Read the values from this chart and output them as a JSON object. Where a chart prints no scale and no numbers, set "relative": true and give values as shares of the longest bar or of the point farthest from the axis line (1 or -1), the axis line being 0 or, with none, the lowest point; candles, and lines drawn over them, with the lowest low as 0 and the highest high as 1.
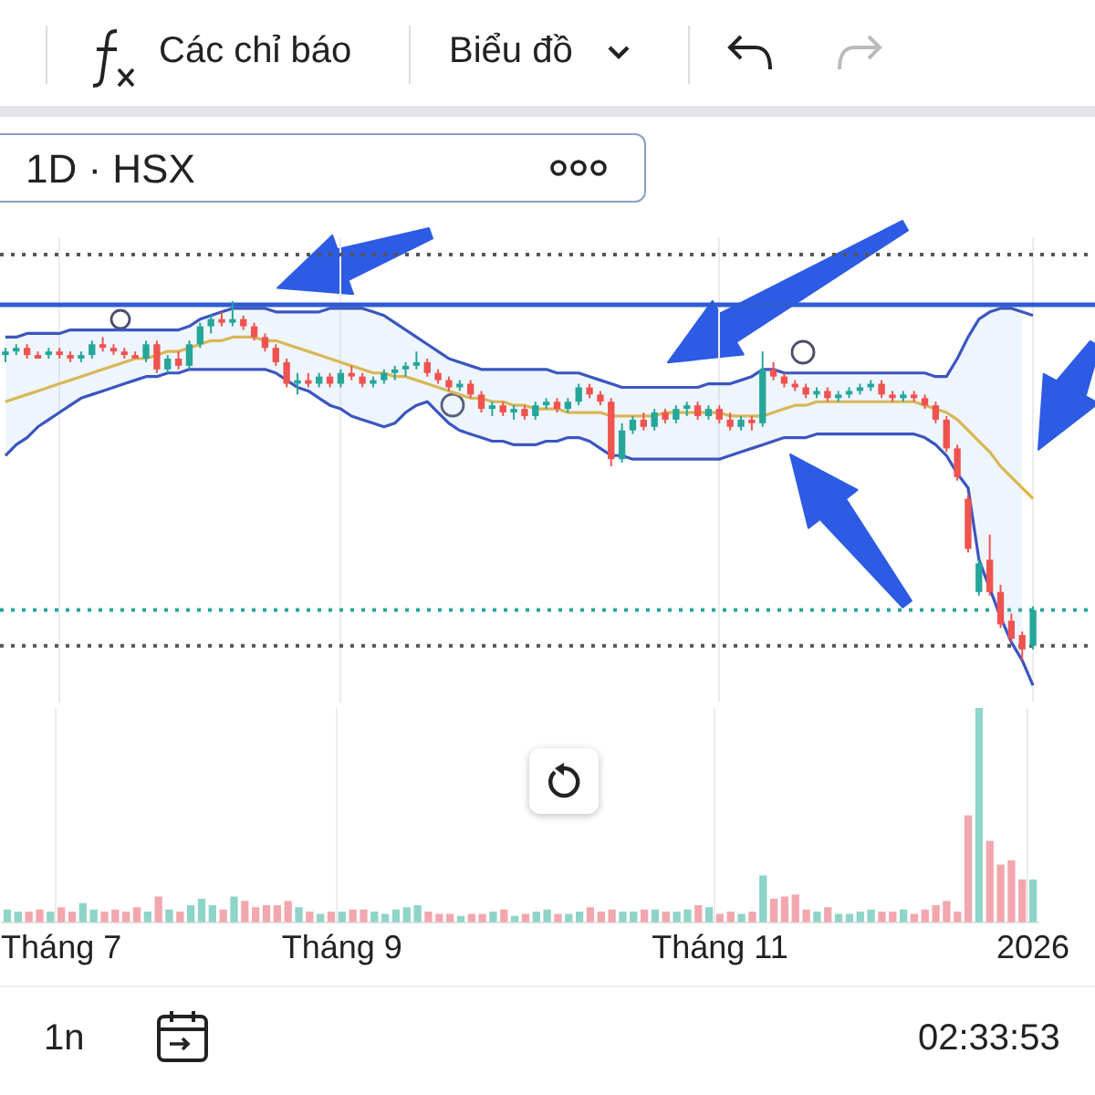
{
  "chart_data": [
    {
      "type": "candlestick",
      "title": "1D · HSX",
      "relative": true,
      "tick_labels": false,
      "grid": "x",
      "marker": "none",
      "annotations": [
        "Các chỉ báo",
        "Biểu đồ",
        "1n",
        "02:33:53"
      ],
      "categories": [
        null,
        null,
        null,
        null,
        null,
        null,
        null,
        null,
        null,
        null,
        null,
        null,
        null,
        null,
        null,
        null,
        null,
        null,
        null,
        null,
        null,
        null,
        null,
        null,
        null,
        null,
        null,
        null,
        null,
        null,
        null,
        null,
        null,
        null,
        null,
        null,
        null,
        null,
        null,
        null,
        null,
        null,
        null,
        null,
        null,
        null,
        null,
        null,
        null,
        null,
        null,
        null,
        null,
        null,
        null,
        null,
        null,
        null,
        null,
        null,
        null,
        null,
        null,
        null,
        null,
        null,
        null,
        null,
        null,
        null,
        null,
        null,
        null,
        null,
        null,
        null,
        null,
        null,
        null,
        null,
        null,
        null,
        null,
        null,
        null,
        null,
        null,
        null,
        null,
        null,
        null,
        null,
        null,
        null,
        null,
        null
      ],
      "ohlc": [
        [
          0.85,
          0.87,
          0.83,
          0.86
        ],
        [
          0.86,
          0.88,
          0.85,
          0.87
        ],
        [
          0.87,
          0.88,
          0.84,
          0.85
        ],
        [
          0.85,
          0.86,
          0.84,
          0.84
        ],
        [
          0.85,
          0.87,
          0.84,
          0.86
        ],
        [
          0.86,
          0.87,
          0.84,
          0.85
        ],
        [
          0.85,
          0.86,
          0.83,
          0.84
        ],
        [
          0.84,
          0.86,
          0.83,
          0.85
        ],
        [
          0.85,
          0.89,
          0.84,
          0.88
        ],
        [
          0.88,
          0.9,
          0.86,
          0.87
        ],
        [
          0.87,
          0.88,
          0.85,
          0.86
        ],
        [
          0.86,
          0.87,
          0.84,
          0.85
        ],
        [
          0.85,
          0.86,
          0.84,
          0.84
        ],
        [
          0.84,
          0.89,
          0.83,
          0.88
        ],
        [
          0.88,
          0.89,
          0.8,
          0.81
        ],
        [
          0.81,
          0.85,
          0.8,
          0.84
        ],
        [
          0.84,
          0.86,
          0.81,
          0.82
        ],
        [
          0.82,
          0.89,
          0.81,
          0.88
        ],
        [
          0.88,
          0.94,
          0.87,
          0.93
        ],
        [
          0.93,
          0.96,
          0.91,
          0.95
        ],
        [
          0.95,
          0.97,
          0.93,
          0.94
        ],
        [
          0.94,
          1.0,
          0.93,
          0.95
        ],
        [
          0.95,
          0.96,
          0.92,
          0.93
        ],
        [
          0.93,
          0.94,
          0.89,
          0.9
        ],
        [
          0.9,
          0.91,
          0.86,
          0.87
        ],
        [
          0.87,
          0.88,
          0.82,
          0.83
        ],
        [
          0.83,
          0.84,
          0.76,
          0.77
        ],
        [
          0.77,
          0.8,
          0.74,
          0.78
        ],
        [
          0.78,
          0.8,
          0.76,
          0.77
        ],
        [
          0.77,
          0.8,
          0.76,
          0.79
        ],
        [
          0.79,
          0.8,
          0.76,
          0.77
        ],
        [
          0.77,
          0.81,
          0.76,
          0.8
        ],
        [
          0.8,
          0.82,
          0.78,
          0.79
        ],
        [
          0.79,
          0.8,
          0.76,
          0.77
        ],
        [
          0.77,
          0.79,
          0.76,
          0.78
        ],
        [
          0.78,
          0.81,
          0.77,
          0.8
        ],
        [
          0.8,
          0.82,
          0.78,
          0.81
        ],
        [
          0.81,
          0.83,
          0.79,
          0.82
        ],
        [
          0.82,
          0.86,
          0.81,
          0.83
        ],
        [
          0.83,
          0.84,
          0.79,
          0.8
        ],
        [
          0.8,
          0.81,
          0.77,
          0.78
        ],
        [
          0.78,
          0.79,
          0.75,
          0.76
        ],
        [
          0.76,
          0.78,
          0.75,
          0.77
        ],
        [
          0.77,
          0.78,
          0.73,
          0.74
        ],
        [
          0.74,
          0.75,
          0.69,
          0.7
        ],
        [
          0.7,
          0.72,
          0.68,
          0.71
        ],
        [
          0.71,
          0.72,
          0.68,
          0.69
        ],
        [
          0.69,
          0.71,
          0.67,
          0.7
        ],
        [
          0.7,
          0.71,
          0.67,
          0.68
        ],
        [
          0.68,
          0.72,
          0.67,
          0.71
        ],
        [
          0.71,
          0.73,
          0.7,
          0.72
        ],
        [
          0.72,
          0.73,
          0.69,
          0.7
        ],
        [
          0.7,
          0.73,
          0.69,
          0.72
        ],
        [
          0.72,
          0.77,
          0.71,
          0.76
        ],
        [
          0.76,
          0.77,
          0.73,
          0.74
        ],
        [
          0.74,
          0.75,
          0.71,
          0.72
        ],
        [
          0.72,
          0.73,
          0.54,
          0.56
        ],
        [
          0.56,
          0.66,
          0.55,
          0.64
        ],
        [
          0.64,
          0.68,
          0.63,
          0.67
        ],
        [
          0.67,
          0.69,
          0.64,
          0.65
        ],
        [
          0.65,
          0.7,
          0.64,
          0.69
        ],
        [
          0.69,
          0.7,
          0.66,
          0.67
        ],
        [
          0.67,
          0.71,
          0.66,
          0.7
        ],
        [
          0.7,
          0.72,
          0.68,
          0.71
        ],
        [
          0.71,
          0.72,
          0.67,
          0.68
        ],
        [
          0.68,
          0.71,
          0.67,
          0.7
        ],
        [
          0.7,
          0.71,
          0.66,
          0.67
        ],
        [
          0.67,
          0.69,
          0.64,
          0.65
        ],
        [
          0.65,
          0.68,
          0.64,
          0.67
        ],
        [
          0.67,
          0.68,
          0.64,
          0.66
        ],
        [
          0.66,
          0.86,
          0.65,
          0.81
        ],
        [
          0.81,
          0.83,
          0.78,
          0.79
        ],
        [
          0.79,
          0.8,
          0.76,
          0.77
        ],
        [
          0.77,
          0.78,
          0.75,
          0.76
        ],
        [
          0.76,
          0.77,
          0.73,
          0.74
        ],
        [
          0.74,
          0.76,
          0.73,
          0.75
        ],
        [
          0.75,
          0.76,
          0.72,
          0.73
        ],
        [
          0.73,
          0.75,
          0.72,
          0.74
        ],
        [
          0.74,
          0.76,
          0.73,
          0.75
        ],
        [
          0.75,
          0.77,
          0.74,
          0.76
        ],
        [
          0.76,
          0.78,
          0.75,
          0.77
        ],
        [
          0.77,
          0.78,
          0.73,
          0.74
        ],
        [
          0.74,
          0.75,
          0.72,
          0.73
        ],
        [
          0.73,
          0.75,
          0.72,
          0.74
        ],
        [
          0.74,
          0.75,
          0.72,
          0.73
        ],
        [
          0.73,
          0.74,
          0.7,
          0.71
        ],
        [
          0.71,
          0.72,
          0.66,
          0.67
        ],
        [
          0.67,
          0.68,
          0.58,
          0.59
        ],
        [
          0.59,
          0.6,
          0.5,
          0.51
        ],
        [
          0.45,
          0.46,
          0.3,
          0.31
        ],
        [
          0.19,
          0.28,
          0.18,
          0.27
        ],
        [
          0.28,
          0.35,
          0.18,
          0.19
        ],
        [
          0.19,
          0.21,
          0.09,
          0.1
        ],
        [
          0.11,
          0.13,
          0.05,
          0.06
        ],
        [
          0.07,
          0.08,
          0.0,
          0.03
        ],
        [
          0.04,
          0.15,
          0.03,
          0.14
        ]
      ],
      "series": [
        {
          "type": "line",
          "color": "#3b55c0",
          "values": [
            0.9,
            0.9,
            0.91,
            0.91,
            0.91,
            0.91,
            0.92,
            0.92,
            0.92,
            0.92,
            0.92,
            0.92,
            0.92,
            0.92,
            0.92,
            0.92,
            0.92,
            0.93,
            0.95,
            0.96,
            0.97,
            0.98,
            0.98,
            0.98,
            0.98,
            0.97,
            0.97,
            0.97,
            0.97,
            0.97,
            0.98,
            0.98,
            0.98,
            0.98,
            0.97,
            0.96,
            0.94,
            0.92,
            0.9,
            0.88,
            0.86,
            0.84,
            0.83,
            0.82,
            0.81,
            0.81,
            0.81,
            0.81,
            0.81,
            0.81,
            0.81,
            0.8,
            0.8,
            0.8,
            0.79,
            0.78,
            0.77,
            0.76,
            0.76,
            0.76,
            0.76,
            0.76,
            0.76,
            0.76,
            0.76,
            0.77,
            0.77,
            0.77,
            0.78,
            0.79,
            0.81,
            0.81,
            0.8,
            0.8,
            0.8,
            0.8,
            0.8,
            0.8,
            0.8,
            0.8,
            0.8,
            0.8,
            0.8,
            0.8,
            0.8,
            0.8,
            0.79,
            0.79,
            0.84,
            0.9,
            0.95,
            0.97,
            0.98,
            0.98,
            0.97,
            0.96
          ]
        },
        {
          "type": "line",
          "color": "#3b55c0",
          "values": [
            0.57,
            0.6,
            0.62,
            0.65,
            0.67,
            0.69,
            0.71,
            0.73,
            0.74,
            0.75,
            0.76,
            0.77,
            0.78,
            0.79,
            0.79,
            0.8,
            0.8,
            0.81,
            0.81,
            0.81,
            0.81,
            0.81,
            0.81,
            0.81,
            0.81,
            0.8,
            0.78,
            0.76,
            0.75,
            0.73,
            0.71,
            0.7,
            0.68,
            0.67,
            0.66,
            0.65,
            0.66,
            0.69,
            0.71,
            0.72,
            0.69,
            0.66,
            0.64,
            0.63,
            0.62,
            0.61,
            0.61,
            0.6,
            0.6,
            0.6,
            0.61,
            0.61,
            0.62,
            0.62,
            0.61,
            0.59,
            0.57,
            0.57,
            0.56,
            0.56,
            0.56,
            0.56,
            0.56,
            0.56,
            0.56,
            0.56,
            0.56,
            0.57,
            0.58,
            0.59,
            0.6,
            0.61,
            0.62,
            0.62,
            0.62,
            0.63,
            0.63,
            0.63,
            0.63,
            0.63,
            0.63,
            0.63,
            0.63,
            0.63,
            0.63,
            0.62,
            0.6,
            0.57,
            0.52,
            0.48,
            0.28,
            0.2,
            0.12,
            0.05,
            0.0,
            -0.07
          ]
        },
        {
          "type": "line",
          "color": "#e6b43c",
          "values": [
            0.72,
            0.73,
            0.74,
            0.75,
            0.76,
            0.77,
            0.78,
            0.79,
            0.8,
            0.81,
            0.82,
            0.83,
            0.84,
            0.84,
            0.85,
            0.86,
            0.86,
            0.87,
            0.88,
            0.89,
            0.89,
            0.9,
            0.9,
            0.9,
            0.89,
            0.89,
            0.88,
            0.87,
            0.86,
            0.85,
            0.84,
            0.83,
            0.82,
            0.81,
            0.8,
            0.8,
            0.79,
            0.79,
            0.78,
            0.77,
            0.76,
            0.75,
            0.74,
            0.73,
            0.73,
            0.72,
            0.72,
            0.71,
            0.71,
            0.7,
            0.7,
            0.7,
            0.69,
            0.69,
            0.69,
            0.69,
            0.68,
            0.68,
            0.68,
            0.68,
            0.68,
            0.69,
            0.69,
            0.69,
            0.69,
            0.69,
            0.69,
            0.68,
            0.68,
            0.68,
            0.68,
            0.69,
            0.7,
            0.71,
            0.71,
            0.72,
            0.72,
            0.72,
            0.72,
            0.72,
            0.72,
            0.72,
            0.72,
            0.72,
            0.72,
            0.71,
            0.7,
            0.69,
            0.67,
            0.64,
            0.61,
            0.58,
            0.54,
            0.51,
            0.48,
            0.45
          ],
          "upper": [
            0.9,
            0.9,
            0.91,
            0.91,
            0.91,
            0.91,
            0.92,
            0.92,
            0.92,
            0.92,
            0.92,
            0.92,
            0.92,
            0.92,
            0.92,
            0.92,
            0.92,
            0.93,
            0.95,
            0.96,
            0.97,
            0.98,
            0.98,
            0.98,
            0.98,
            0.97,
            0.97,
            0.97,
            0.97,
            0.97,
            0.98,
            0.98,
            0.98,
            0.98,
            0.97,
            0.96,
            0.94,
            0.92,
            0.9,
            0.88,
            0.86,
            0.84,
            0.83,
            0.82,
            0.81,
            0.81,
            0.81,
            0.81,
            0.81,
            0.81,
            0.81,
            0.8,
            0.8,
            0.8,
            0.79,
            0.78,
            0.77,
            0.76,
            0.76,
            0.76,
            0.76,
            0.76,
            0.76,
            0.76,
            0.76,
            0.77,
            0.77,
            0.77,
            0.78,
            0.79,
            0.81,
            0.81,
            0.8,
            0.8,
            0.8,
            0.8,
            0.8,
            0.8,
            0.8,
            0.8,
            0.8,
            0.8,
            0.8,
            0.8,
            0.8,
            0.8,
            0.79,
            0.79,
            0.84,
            0.9,
            0.95,
            0.97,
            0.98,
            0.98,
            0.97,
            null
          ],
          "lower": [
            0.57,
            0.6,
            0.62,
            0.65,
            0.67,
            0.69,
            0.71,
            0.73,
            0.74,
            0.75,
            0.76,
            0.77,
            0.78,
            0.79,
            0.79,
            0.8,
            0.8,
            0.81,
            0.81,
            0.81,
            0.81,
            0.81,
            0.81,
            0.81,
            0.81,
            0.8,
            0.78,
            0.76,
            0.75,
            0.73,
            0.71,
            0.7,
            0.68,
            0.67,
            0.66,
            0.65,
            0.66,
            0.69,
            0.71,
            0.72,
            0.69,
            0.66,
            0.64,
            0.63,
            0.62,
            0.61,
            0.61,
            0.6,
            0.6,
            0.6,
            0.61,
            0.61,
            0.62,
            0.62,
            0.61,
            0.59,
            0.57,
            0.57,
            0.56,
            0.56,
            0.56,
            0.56,
            0.56,
            0.56,
            0.56,
            0.56,
            0.56,
            0.57,
            0.58,
            0.59,
            0.6,
            0.61,
            0.62,
            0.62,
            0.62,
            0.63,
            0.63,
            0.63,
            0.63,
            0.63,
            0.63,
            0.63,
            0.63,
            0.63,
            0.63,
            0.62,
            0.6,
            0.57,
            0.52,
            0.48,
            0.28,
            0.2,
            0.12,
            0.05,
            0.0,
            null
          ]
        }
      ],
      "ref_lines": [
        {
          "axis": "y",
          "value": 1.13,
          "color": "#555555",
          "line_style": "dotted"
        },
        {
          "axis": "y",
          "value": 0.14,
          "color": "#26a69a",
          "line_style": "dotted"
        },
        {
          "axis": "y",
          "value": 0.04,
          "color": "#555555",
          "line_style": "dotted"
        },
        {
          "axis": "y",
          "value": 0.99,
          "color": "#2f5bd3",
          "line_style": "solid"
        }
      ]
    },
    {
      "type": "bar",
      "relative": true,
      "tick_labels": "x",
      "grid": "x",
      "categories": [
        null,
        null,
        null,
        null,
        null,
        "Tháng 7",
        null,
        null,
        null,
        null,
        null,
        null,
        null,
        null,
        null,
        null,
        null,
        null,
        null,
        null,
        null,
        null,
        null,
        null,
        null,
        null,
        null,
        null,
        null,
        null,
        null,
        "Tháng 9",
        null,
        null,
        null,
        null,
        null,
        null,
        null,
        null,
        null,
        null,
        null,
        null,
        null,
        null,
        null,
        null,
        null,
        null,
        null,
        null,
        null,
        null,
        null,
        null,
        null,
        null,
        null,
        null,
        null,
        null,
        null,
        null,
        null,
        null,
        "Tháng 11",
        null,
        null,
        null,
        null,
        null,
        null,
        null,
        null,
        null,
        null,
        null,
        null,
        null,
        null,
        null,
        null,
        null,
        null,
        null,
        null,
        null,
        null,
        null,
        null,
        null,
        null,
        null,
        null,
        "2026"
      ],
      "values": [
        0.06,
        0.05,
        0.05,
        0.06,
        0.05,
        0.07,
        0.05,
        0.09,
        0.06,
        0.05,
        0.06,
        0.05,
        0.07,
        0.05,
        0.12,
        0.06,
        0.05,
        0.08,
        0.11,
        0.08,
        0.06,
        0.12,
        0.1,
        0.07,
        0.08,
        0.08,
        0.1,
        0.07,
        0.05,
        0.04,
        0.05,
        0.05,
        0.06,
        0.06,
        0.05,
        0.04,
        0.06,
        0.07,
        0.08,
        0.05,
        0.04,
        0.04,
        0.03,
        0.04,
        0.04,
        0.05,
        0.06,
        0.03,
        0.04,
        0.05,
        0.06,
        0.04,
        0.04,
        0.05,
        0.07,
        0.05,
        0.06,
        0.05,
        0.05,
        0.06,
        0.06,
        0.05,
        0.05,
        0.06,
        0.08,
        0.07,
        0.04,
        0.05,
        0.04,
        0.05,
        0.22,
        0.11,
        0.12,
        0.13,
        0.06,
        0.05,
        0.07,
        0.04,
        0.04,
        0.05,
        0.06,
        0.05,
        0.05,
        0.06,
        0.04,
        0.06,
        0.08,
        0.1,
        0.05,
        0.5,
        1.0,
        0.38,
        0.27,
        0.29,
        0.2,
        0.2
      ],
      "colors": [
        "#8fd4c8",
        "#8fd4c8",
        "#f2a7ae",
        "#f2a7ae",
        "#8fd4c8",
        "#f2a7ae",
        "#f2a7ae",
        "#8fd4c8",
        "#8fd4c8",
        "#f2a7ae",
        "#f2a7ae",
        "#f2a7ae",
        "#f2a7ae",
        "#8fd4c8",
        "#f2a7ae",
        "#8fd4c8",
        "#f2a7ae",
        "#8fd4c8",
        "#8fd4c8",
        "#8fd4c8",
        "#f2a7ae",
        "#8fd4c8",
        "#f2a7ae",
        "#f2a7ae",
        "#f2a7ae",
        "#f2a7ae",
        "#f2a7ae",
        "#8fd4c8",
        "#f2a7ae",
        "#8fd4c8",
        "#f2a7ae",
        "#8fd4c8",
        "#f2a7ae",
        "#f2a7ae",
        "#8fd4c8",
        "#8fd4c8",
        "#8fd4c8",
        "#8fd4c8",
        "#8fd4c8",
        "#f2a7ae",
        "#f2a7ae",
        "#f2a7ae",
        "#8fd4c8",
        "#f2a7ae",
        "#f2a7ae",
        "#8fd4c8",
        "#f2a7ae",
        "#8fd4c8",
        "#f2a7ae",
        "#8fd4c8",
        "#8fd4c8",
        "#f2a7ae",
        "#8fd4c8",
        "#8fd4c8",
        "#f2a7ae",
        "#f2a7ae",
        "#f2a7ae",
        "#8fd4c8",
        "#8fd4c8",
        "#f2a7ae",
        "#8fd4c8",
        "#f2a7ae",
        "#8fd4c8",
        "#8fd4c8",
        "#f2a7ae",
        "#8fd4c8",
        "#f2a7ae",
        "#f2a7ae",
        "#8fd4c8",
        "#f2a7ae",
        "#8fd4c8",
        "#f2a7ae",
        "#f2a7ae",
        "#f2a7ae",
        "#f2a7ae",
        "#8fd4c8",
        "#f2a7ae",
        "#8fd4c8",
        "#8fd4c8",
        "#8fd4c8",
        "#8fd4c8",
        "#f2a7ae",
        "#f2a7ae",
        "#8fd4c8",
        "#f2a7ae",
        "#f2a7ae",
        "#f2a7ae",
        "#f2a7ae",
        "#f2a7ae",
        "#f2a7ae",
        "#8fd4c8",
        "#f2a7ae",
        "#f2a7ae",
        "#f2a7ae",
        "#f2a7ae",
        "#8fd4c8"
      ]
    }
  ]
}
